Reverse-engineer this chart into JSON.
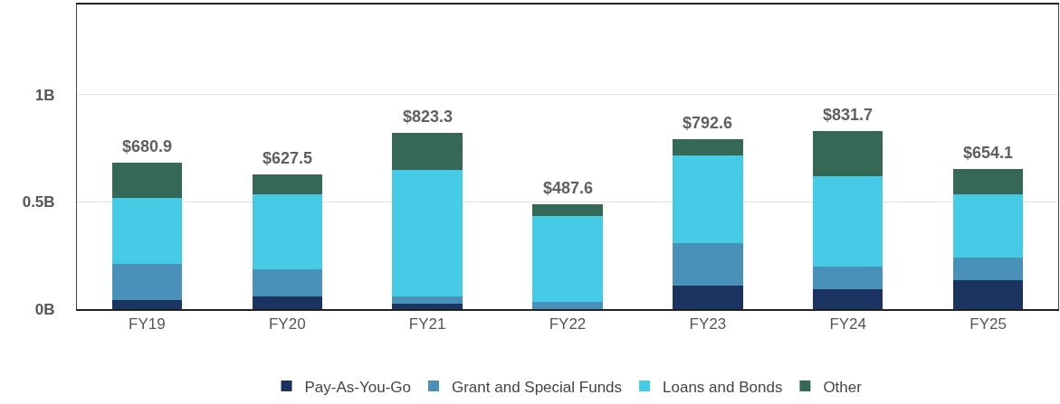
{
  "chart_data": {
    "type": "bar",
    "stacked": true,
    "categories": [
      "FY19",
      "FY20",
      "FY21",
      "FY22",
      "FY23",
      "FY24",
      "FY25"
    ],
    "series": [
      {
        "name": "Pay-As-You-Go",
        "color": "#1b3361",
        "values": [
          0.042,
          0.059,
          0.025,
          0.0,
          0.109,
          0.092,
          0.134
        ]
      },
      {
        "name": "Grant and Special Funds",
        "color": "#4a91ba",
        "values": [
          0.168,
          0.126,
          0.034,
          0.034,
          0.198,
          0.105,
          0.105
        ]
      },
      {
        "name": "Loans and Bonds",
        "color": "#45cbe6",
        "values": [
          0.307,
          0.349,
          0.592,
          0.399,
          0.411,
          0.421,
          0.295
        ]
      },
      {
        "name": "Other",
        "color": "#366857",
        "values": [
          0.1639,
          0.0935,
          0.1723,
          0.0546,
          0.0746,
          0.2137,
          0.1201
        ]
      }
    ],
    "totals": [
      "$680.9",
      "$627.5",
      "$823.3",
      "$487.6",
      "$792.6",
      "$831.7",
      "$654.1"
    ],
    "ylim": [
      0,
      1.42
    ],
    "yticks": [
      {
        "value": 0,
        "label": "0B"
      },
      {
        "value": 0.5,
        "label": "0.5B"
      },
      {
        "value": 1,
        "label": "1B"
      }
    ],
    "grid": "y",
    "legend": "bottom"
  }
}
